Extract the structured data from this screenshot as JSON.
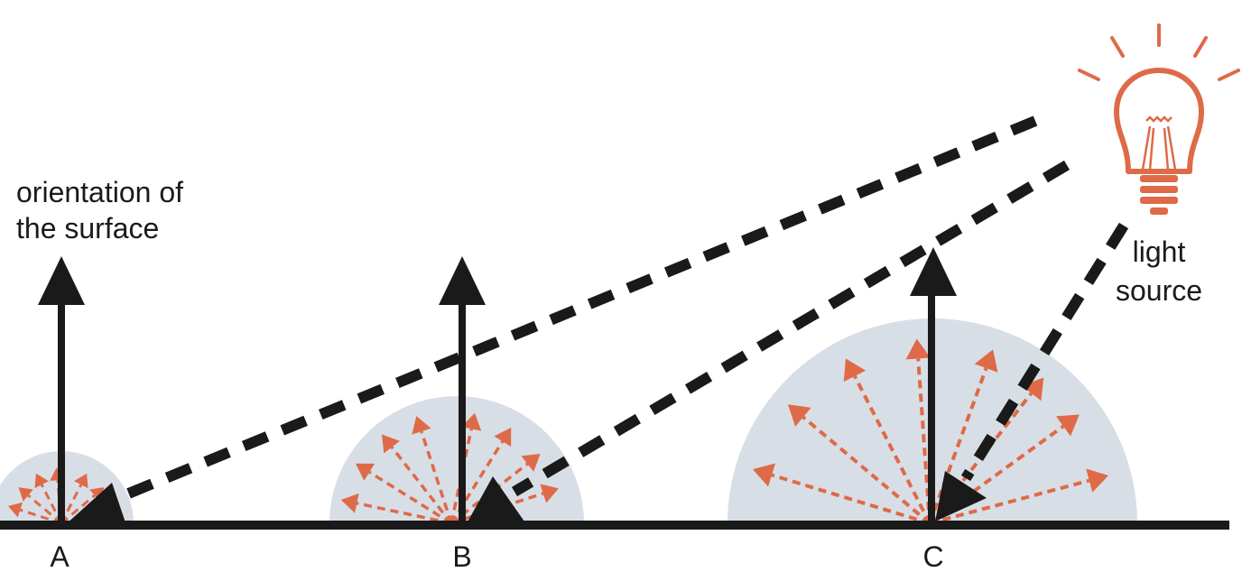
{
  "labels": {
    "orientation_line1": "orientation of",
    "orientation_line2": "the surface",
    "light_line1": "light",
    "light_line2": "source"
  },
  "points": [
    {
      "id": "A",
      "label": "A"
    },
    {
      "id": "B",
      "label": "B"
    },
    {
      "id": "C",
      "label": "C"
    }
  ],
  "colors": {
    "ink": "#1a1a1a",
    "accent": "#de6a48",
    "hemisphere": "#d8dee6"
  },
  "icons": {
    "light": "light-bulb-icon"
  }
}
